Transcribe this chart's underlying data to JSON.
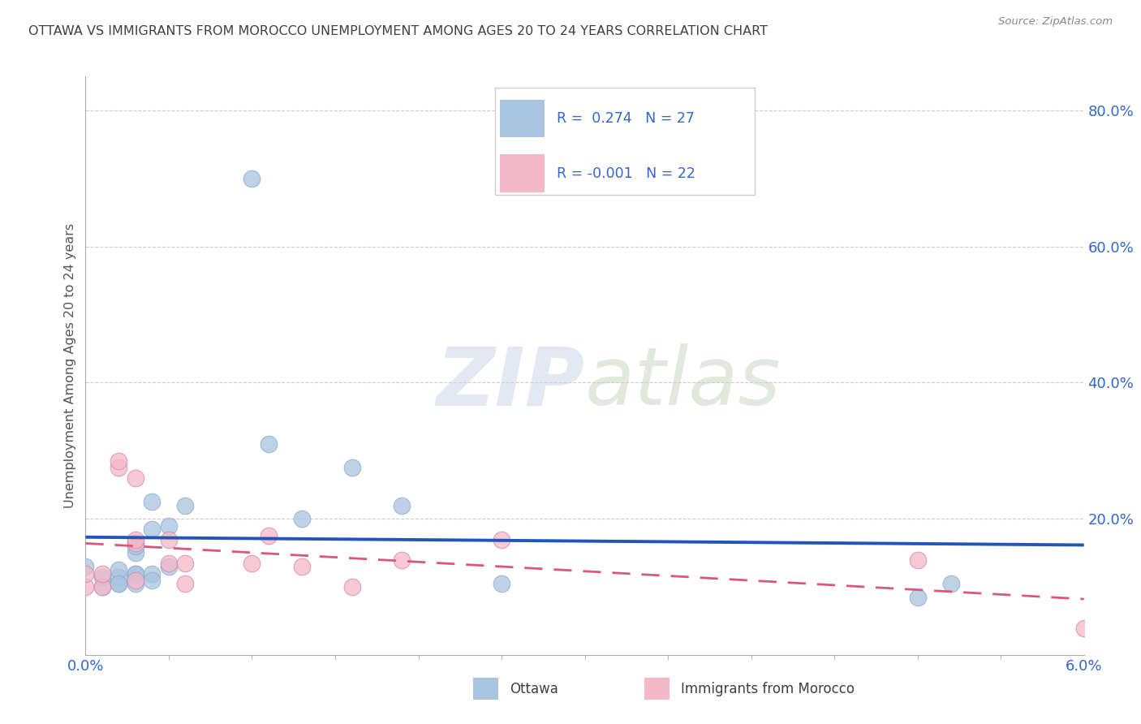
{
  "title": "OTTAWA VS IMMIGRANTS FROM MOROCCO UNEMPLOYMENT AMONG AGES 20 TO 24 YEARS CORRELATION CHART",
  "source": "Source: ZipAtlas.com",
  "ylabel": "Unemployment Among Ages 20 to 24 years",
  "xlim": [
    0.0,
    0.06
  ],
  "ylim": [
    0.0,
    0.85
  ],
  "xticks": [
    0.0,
    0.06
  ],
  "xticklabels": [
    "0.0%",
    "6.0%"
  ],
  "yticks_right": [
    0.2,
    0.4,
    0.6,
    0.8
  ],
  "ytick_labels_right": [
    "20.0%",
    "40.0%",
    "60.0%",
    "80.0%"
  ],
  "grid_yticks": [
    0.2,
    0.4,
    0.6,
    0.8
  ],
  "ottawa_R": 0.274,
  "ottawa_N": 27,
  "morocco_R": -0.001,
  "morocco_N": 22,
  "ottawa_color": "#a8c4e0",
  "morocco_color": "#f4b8c8",
  "ottawa_line_color": "#2255bb",
  "morocco_line_color": "#e05575",
  "legend_text_color": "#3366cc",
  "title_color": "#404040",
  "axis_color": "#3366cc",
  "source_color": "#888888",
  "watermark_zip_color": "#ccd8e8",
  "watermark_atlas_color": "#c8d8c0",
  "ottawa_x": [
    0.0,
    0.001,
    0.001,
    0.002,
    0.002,
    0.002,
    0.002,
    0.003,
    0.003,
    0.003,
    0.003,
    0.003,
    0.004,
    0.004,
    0.004,
    0.004,
    0.005,
    0.005,
    0.006,
    0.01,
    0.011,
    0.013,
    0.016,
    0.019,
    0.025,
    0.05,
    0.052
  ],
  "ottawa_y": [
    0.13,
    0.1,
    0.115,
    0.105,
    0.115,
    0.125,
    0.105,
    0.12,
    0.15,
    0.16,
    0.12,
    0.105,
    0.12,
    0.185,
    0.225,
    0.11,
    0.19,
    0.13,
    0.22,
    0.7,
    0.31,
    0.2,
    0.275,
    0.22,
    0.105,
    0.085,
    0.105
  ],
  "morocco_x": [
    0.0,
    0.0,
    0.001,
    0.001,
    0.002,
    0.002,
    0.003,
    0.003,
    0.003,
    0.003,
    0.005,
    0.005,
    0.006,
    0.006,
    0.01,
    0.011,
    0.013,
    0.016,
    0.019,
    0.025,
    0.05,
    0.06
  ],
  "morocco_y": [
    0.1,
    0.12,
    0.1,
    0.12,
    0.275,
    0.285,
    0.26,
    0.11,
    0.165,
    0.17,
    0.17,
    0.135,
    0.135,
    0.105,
    0.135,
    0.175,
    0.13,
    0.1,
    0.14,
    0.17,
    0.14,
    0.04
  ]
}
